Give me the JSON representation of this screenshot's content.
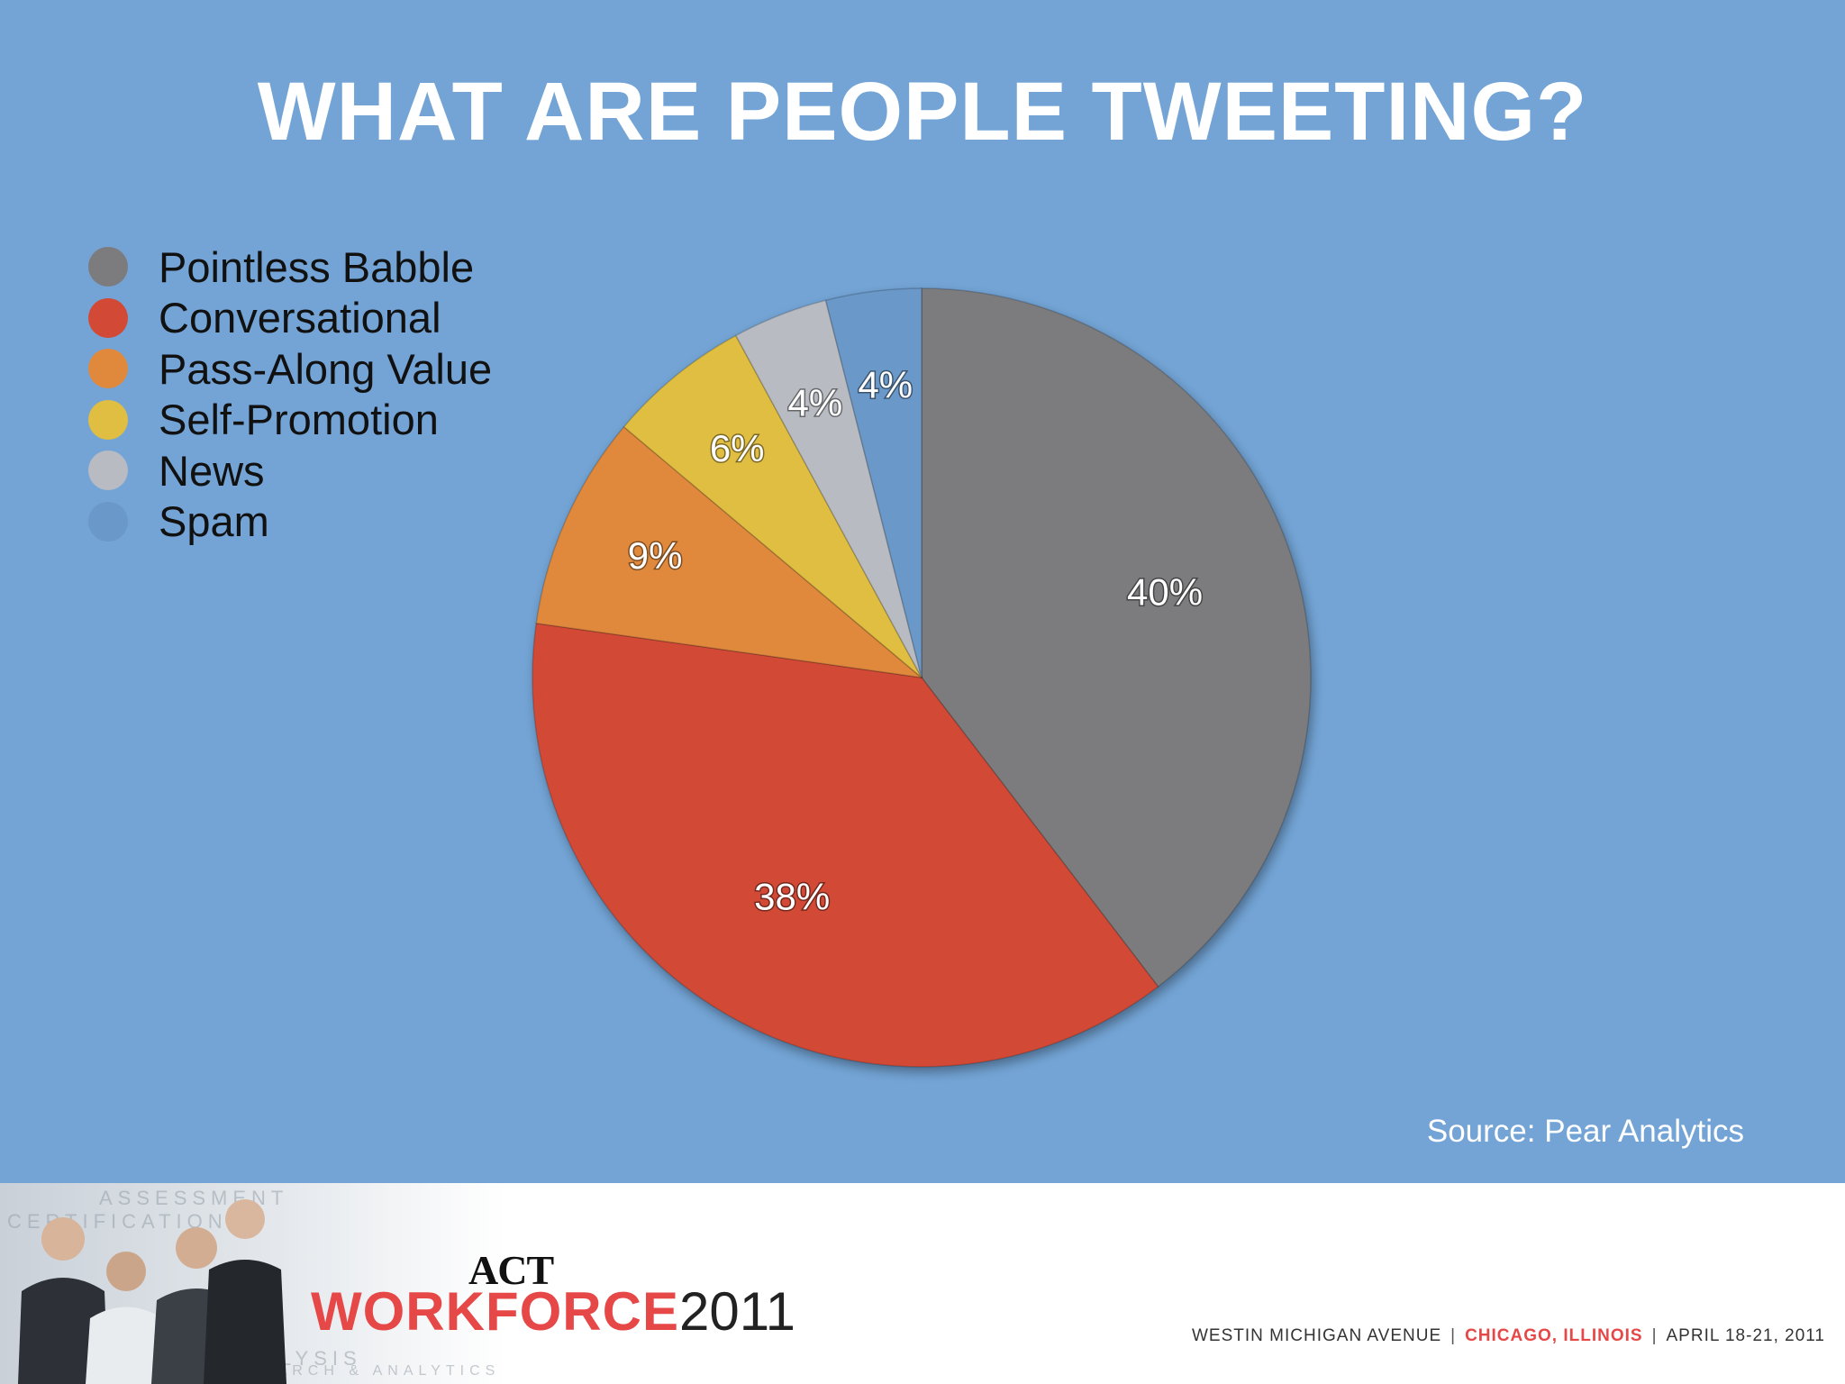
{
  "slide": {
    "title": "WHAT ARE PEOPLE TWEETING?",
    "source": "Source: Pear Analytics"
  },
  "chart_data": {
    "type": "pie",
    "title": "",
    "legend_position": "top-left",
    "categories": [
      "Pointless Babble",
      "Conversational",
      "Pass-Along Value",
      "Self-Promotion",
      "News",
      "Spam"
    ],
    "values": [
      40,
      38,
      9,
      6,
      4,
      4
    ],
    "data_labels": [
      "40%",
      "38%",
      "9%",
      "6%",
      "4%",
      "4%"
    ],
    "colors": [
      "#7c7c7e",
      "#d24a36",
      "#e0893c",
      "#e0be42",
      "#b8bcc2",
      "#6a98c9"
    ]
  },
  "footer": {
    "act": "ACT",
    "brand_word": "WORKFORCE",
    "brand_year": "2011",
    "venue": "WESTIN MICHIGAN AVENUE",
    "city": "CHICAGO, ILLINOIS",
    "dates": "APRIL 18-21, 2011",
    "separator": "|",
    "photo_words": [
      "ASSESSMENT",
      "CERTIFICATION",
      "JOB ANALYSIS",
      "RESEARCH & ANALYTICS"
    ]
  }
}
